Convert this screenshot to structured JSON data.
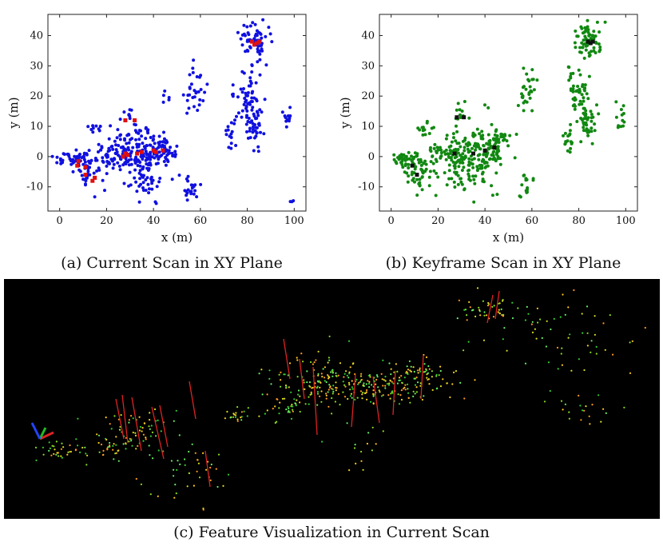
{
  "chart_data": [
    {
      "type": "scatter",
      "caption": "(a) Current Scan in XY Plane",
      "xlabel": "x (m)",
      "ylabel": "y (m)",
      "xlim": [
        -5,
        105
      ],
      "ylim": [
        -18,
        47
      ],
      "xticks": [
        0,
        20,
        40,
        60,
        80,
        100
      ],
      "yticks": [
        -10,
        0,
        10,
        20,
        30,
        40
      ],
      "grid": false,
      "series": [
        {
          "color": "#1010e0",
          "clusters": [
            {
              "cx": 6,
              "cy": -1,
              "sx": 4,
              "sy": 1.2,
              "n": 45
            },
            {
              "cx": 12,
              "cy": -5,
              "sx": 3,
              "sy": 3,
              "n": 40
            },
            {
              "cx": 20,
              "cy": 1,
              "sx": 3,
              "sy": 2,
              "n": 25
            },
            {
              "cx": 28,
              "cy": 1,
              "sx": 3.5,
              "sy": 4,
              "n": 80
            },
            {
              "cx": 30,
              "cy": 13,
              "sx": 1.5,
              "sy": 2,
              "n": 10
            },
            {
              "cx": 37,
              "cy": 0,
              "sx": 4,
              "sy": 5,
              "n": 110
            },
            {
              "cx": 45,
              "cy": 2,
              "sx": 3,
              "sy": 3,
              "n": 50
            },
            {
              "cx": 36,
              "cy": -10,
              "sx": 2.5,
              "sy": 3,
              "n": 15
            },
            {
              "cx": 58,
              "cy": 22,
              "sx": 2,
              "sy": 4,
              "n": 30
            },
            {
              "cx": 56,
              "cy": -10,
              "sx": 2,
              "sy": 2.5,
              "n": 22
            },
            {
              "cx": 73,
              "cy": 8,
              "sx": 1.5,
              "sy": 3,
              "n": 15
            },
            {
              "cx": 79,
              "cy": 20,
              "sx": 2.5,
              "sy": 5,
              "n": 45
            },
            {
              "cx": 84,
              "cy": 12,
              "sx": 2,
              "sy": 5,
              "n": 45
            },
            {
              "cx": 83,
              "cy": 38,
              "sx": 3,
              "sy": 3,
              "n": 65
            },
            {
              "cx": 97,
              "cy": 13,
              "sx": 1,
              "sy": 1.5,
              "n": 12
            },
            {
              "cx": 15,
              "cy": 10,
              "sx": 2,
              "sy": 0.6,
              "n": 10
            },
            {
              "cx": 45,
              "cy": 20,
              "sx": 1,
              "sy": 1.2,
              "n": 5
            },
            {
              "cx": 99,
              "cy": -15,
              "sx": 0.5,
              "sy": 0.5,
              "n": 3
            }
          ]
        },
        {
          "color": "#e01010",
          "points": [
            [
              8,
              -1.5
            ],
            [
              7.5,
              -3
            ],
            [
              11,
              -3.5
            ],
            [
              11,
              -6
            ],
            [
              14,
              -8
            ],
            [
              15,
              -7
            ],
            [
              27,
              0
            ],
            [
              28,
              1
            ],
            [
              29,
              0.5
            ],
            [
              28,
              12
            ],
            [
              32,
              12
            ],
            [
              33,
              1
            ],
            [
              35,
              1.5
            ],
            [
              40,
              2
            ],
            [
              41,
              1.5
            ],
            [
              44,
              2
            ],
            [
              82,
              38
            ],
            [
              83,
              37
            ],
            [
              85,
              38
            ],
            [
              84,
              37.5
            ]
          ]
        }
      ]
    },
    {
      "type": "scatter",
      "caption": "(b) Keyframe Scan in XY Plane",
      "xlabel": "x (m)",
      "ylabel": "y (m)",
      "xlim": [
        -5,
        105
      ],
      "ylim": [
        -18,
        47
      ],
      "xticks": [
        0,
        20,
        40,
        60,
        80,
        100
      ],
      "yticks": [
        -10,
        0,
        10,
        20,
        30,
        40
      ],
      "grid": false,
      "series": [
        {
          "color": "#118811",
          "clusters": [
            {
              "cx": 6,
              "cy": -1,
              "sx": 4,
              "sy": 1.2,
              "n": 45
            },
            {
              "cx": 12,
              "cy": -5,
              "sx": 3,
              "sy": 3,
              "n": 45
            },
            {
              "cx": 14,
              "cy": 9,
              "sx": 2,
              "sy": 1,
              "n": 14
            },
            {
              "cx": 20,
              "cy": 1,
              "sx": 3,
              "sy": 2,
              "n": 28
            },
            {
              "cx": 28,
              "cy": 0,
              "sx": 3,
              "sy": 5,
              "n": 80
            },
            {
              "cx": 29,
              "cy": 14,
              "sx": 1.5,
              "sy": 2,
              "n": 10
            },
            {
              "cx": 38,
              "cy": 0,
              "sx": 4,
              "sy": 5,
              "n": 120
            },
            {
              "cx": 46,
              "cy": 3,
              "sx": 3,
              "sy": 3,
              "n": 50
            },
            {
              "cx": 58,
              "cy": 23,
              "sx": 2,
              "sy": 3.5,
              "n": 28
            },
            {
              "cx": 58,
              "cy": -9,
              "sx": 1.5,
              "sy": 2.5,
              "n": 15
            },
            {
              "cx": 75,
              "cy": 6,
              "sx": 1.5,
              "sy": 3,
              "n": 18
            },
            {
              "cx": 80,
              "cy": 22,
              "sx": 2.5,
              "sy": 5,
              "n": 45
            },
            {
              "cx": 84,
              "cy": 12,
              "sx": 2,
              "sy": 4,
              "n": 40
            },
            {
              "cx": 84,
              "cy": 38,
              "sx": 3,
              "sy": 3,
              "n": 65
            },
            {
              "cx": 98,
              "cy": 13,
              "sx": 1,
              "sy": 2,
              "n": 12
            }
          ]
        },
        {
          "color": "#111111",
          "points": [
            [
              9,
              -3
            ],
            [
              11,
              -6
            ],
            [
              27,
              1
            ],
            [
              28,
              13
            ],
            [
              31,
              13
            ],
            [
              35,
              1
            ],
            [
              40,
              2
            ],
            [
              44,
              3
            ],
            [
              84,
              38
            ],
            [
              85,
              37.5
            ],
            [
              86,
              38
            ]
          ]
        }
      ]
    }
  ],
  "captions": {
    "a": "(a) Current Scan in XY Plane",
    "b": "(b) Keyframe Scan in XY Plane",
    "c": "(c) Feature Visualization in Current Scan"
  },
  "visualization": {
    "background": "#000000",
    "point_colors": [
      "#33cc33",
      "#88dd22",
      "#dddd22",
      "#ffcc22",
      "#ff9922",
      "#66ee66"
    ],
    "feature_line_color": "#dd2222",
    "axes_colors": {
      "x": "#dd2222",
      "y": "#22bb22",
      "z": "#2244ff"
    }
  }
}
